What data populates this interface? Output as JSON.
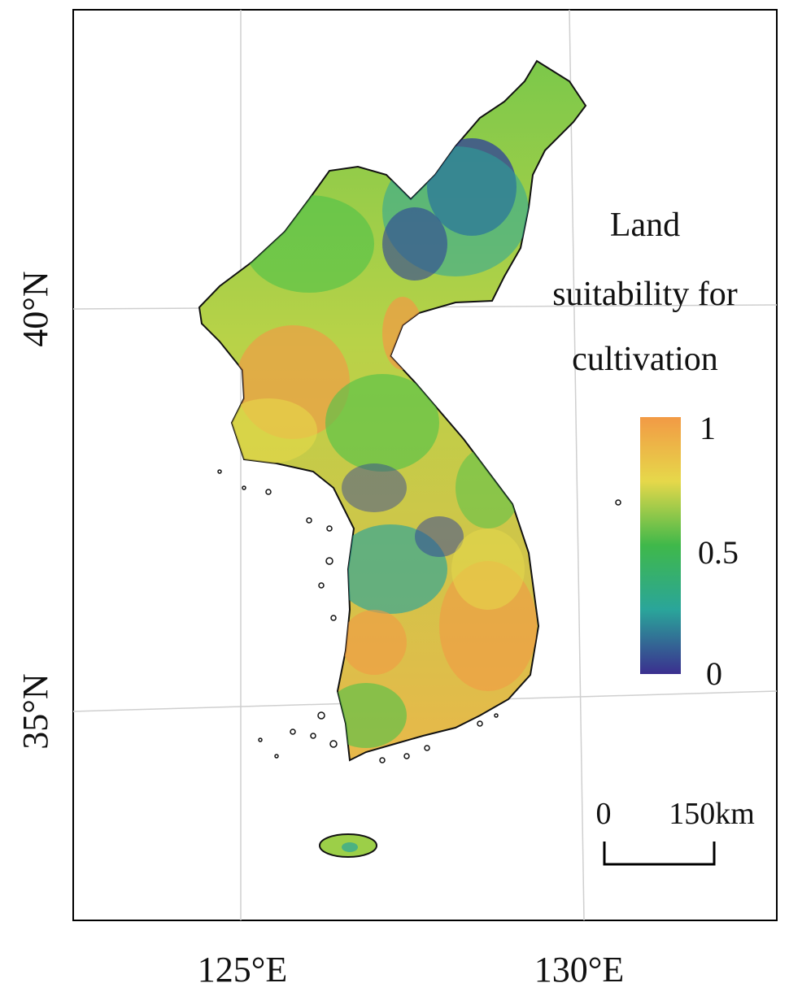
{
  "map": {
    "longitude_labels": [
      "125°E",
      "130°E"
    ],
    "latitude_labels": [
      "40°N",
      "35°N"
    ],
    "grid": true
  },
  "legend": {
    "title_lines": [
      "Land",
      "suitability for",
      "cultivation"
    ],
    "tick_labels": [
      "1",
      "0.5",
      "0"
    ],
    "colors": {
      "high": "#f29a45",
      "upper": "#e6d84a",
      "mid": "#3fb84a",
      "lower": "#2aa59a",
      "low": "#3b2f8f"
    }
  },
  "scale_bar": {
    "start_label": "0",
    "end_label": "150km"
  }
}
